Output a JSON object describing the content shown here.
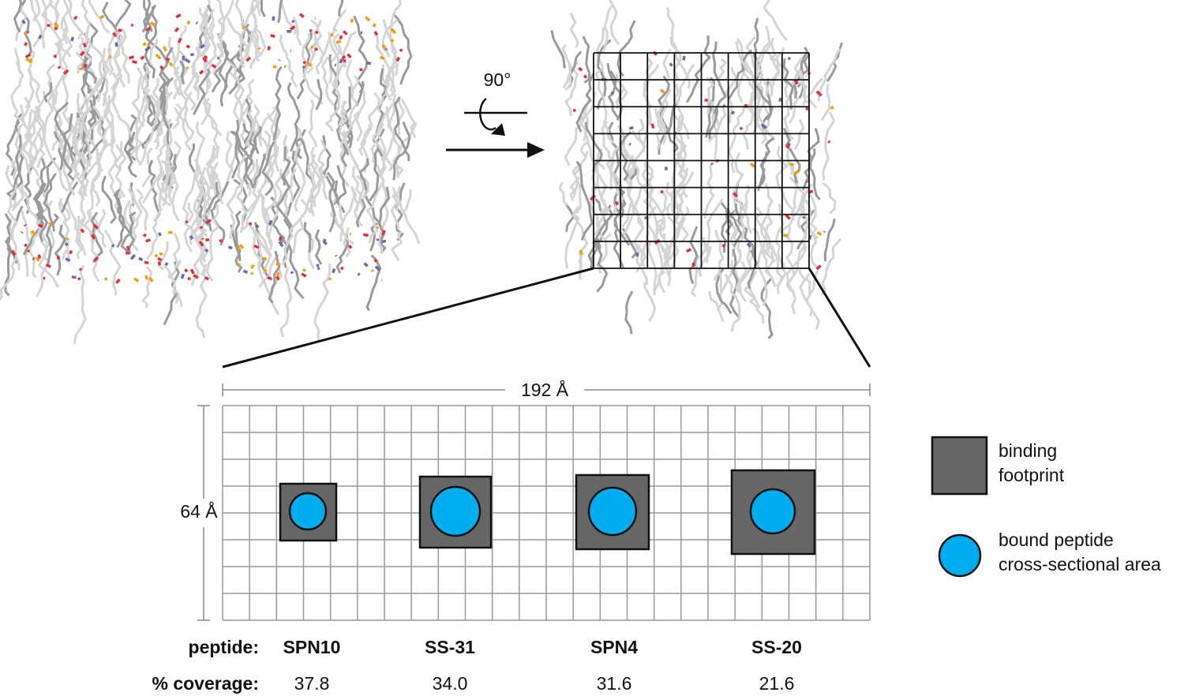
{
  "rotation": {
    "label": "90°"
  },
  "schematic": {
    "width_label": "192 Å",
    "height_label": "64 Å"
  },
  "legend": [
    {
      "label_lines": [
        "binding",
        "footprint"
      ]
    },
    {
      "label_lines": [
        "bound peptide",
        "cross-sectional area"
      ]
    }
  ],
  "table": {
    "row_headers": [
      "peptide:",
      "% coverage:"
    ],
    "peptides": [
      "SPN10",
      "SS-31",
      "SPN4",
      "SS-20"
    ],
    "coverage": [
      "37.8",
      "34.0",
      "31.6",
      "21.6"
    ]
  }
}
